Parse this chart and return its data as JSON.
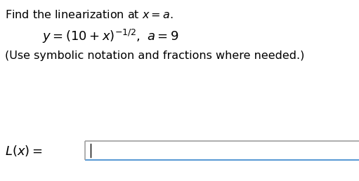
{
  "note_text": "(Use symbolic notation and fractions where needed.)",
  "bg_color": "#ffffff",
  "text_color": "#000000",
  "box_border_top_color": "#a0a0a0",
  "box_border_bottom_color": "#5b9bd5",
  "box_fill_color": "#ffffff",
  "font_size_main": 11.5,
  "font_size_eq": 13,
  "font_size_note": 11.5,
  "font_size_label": 13
}
